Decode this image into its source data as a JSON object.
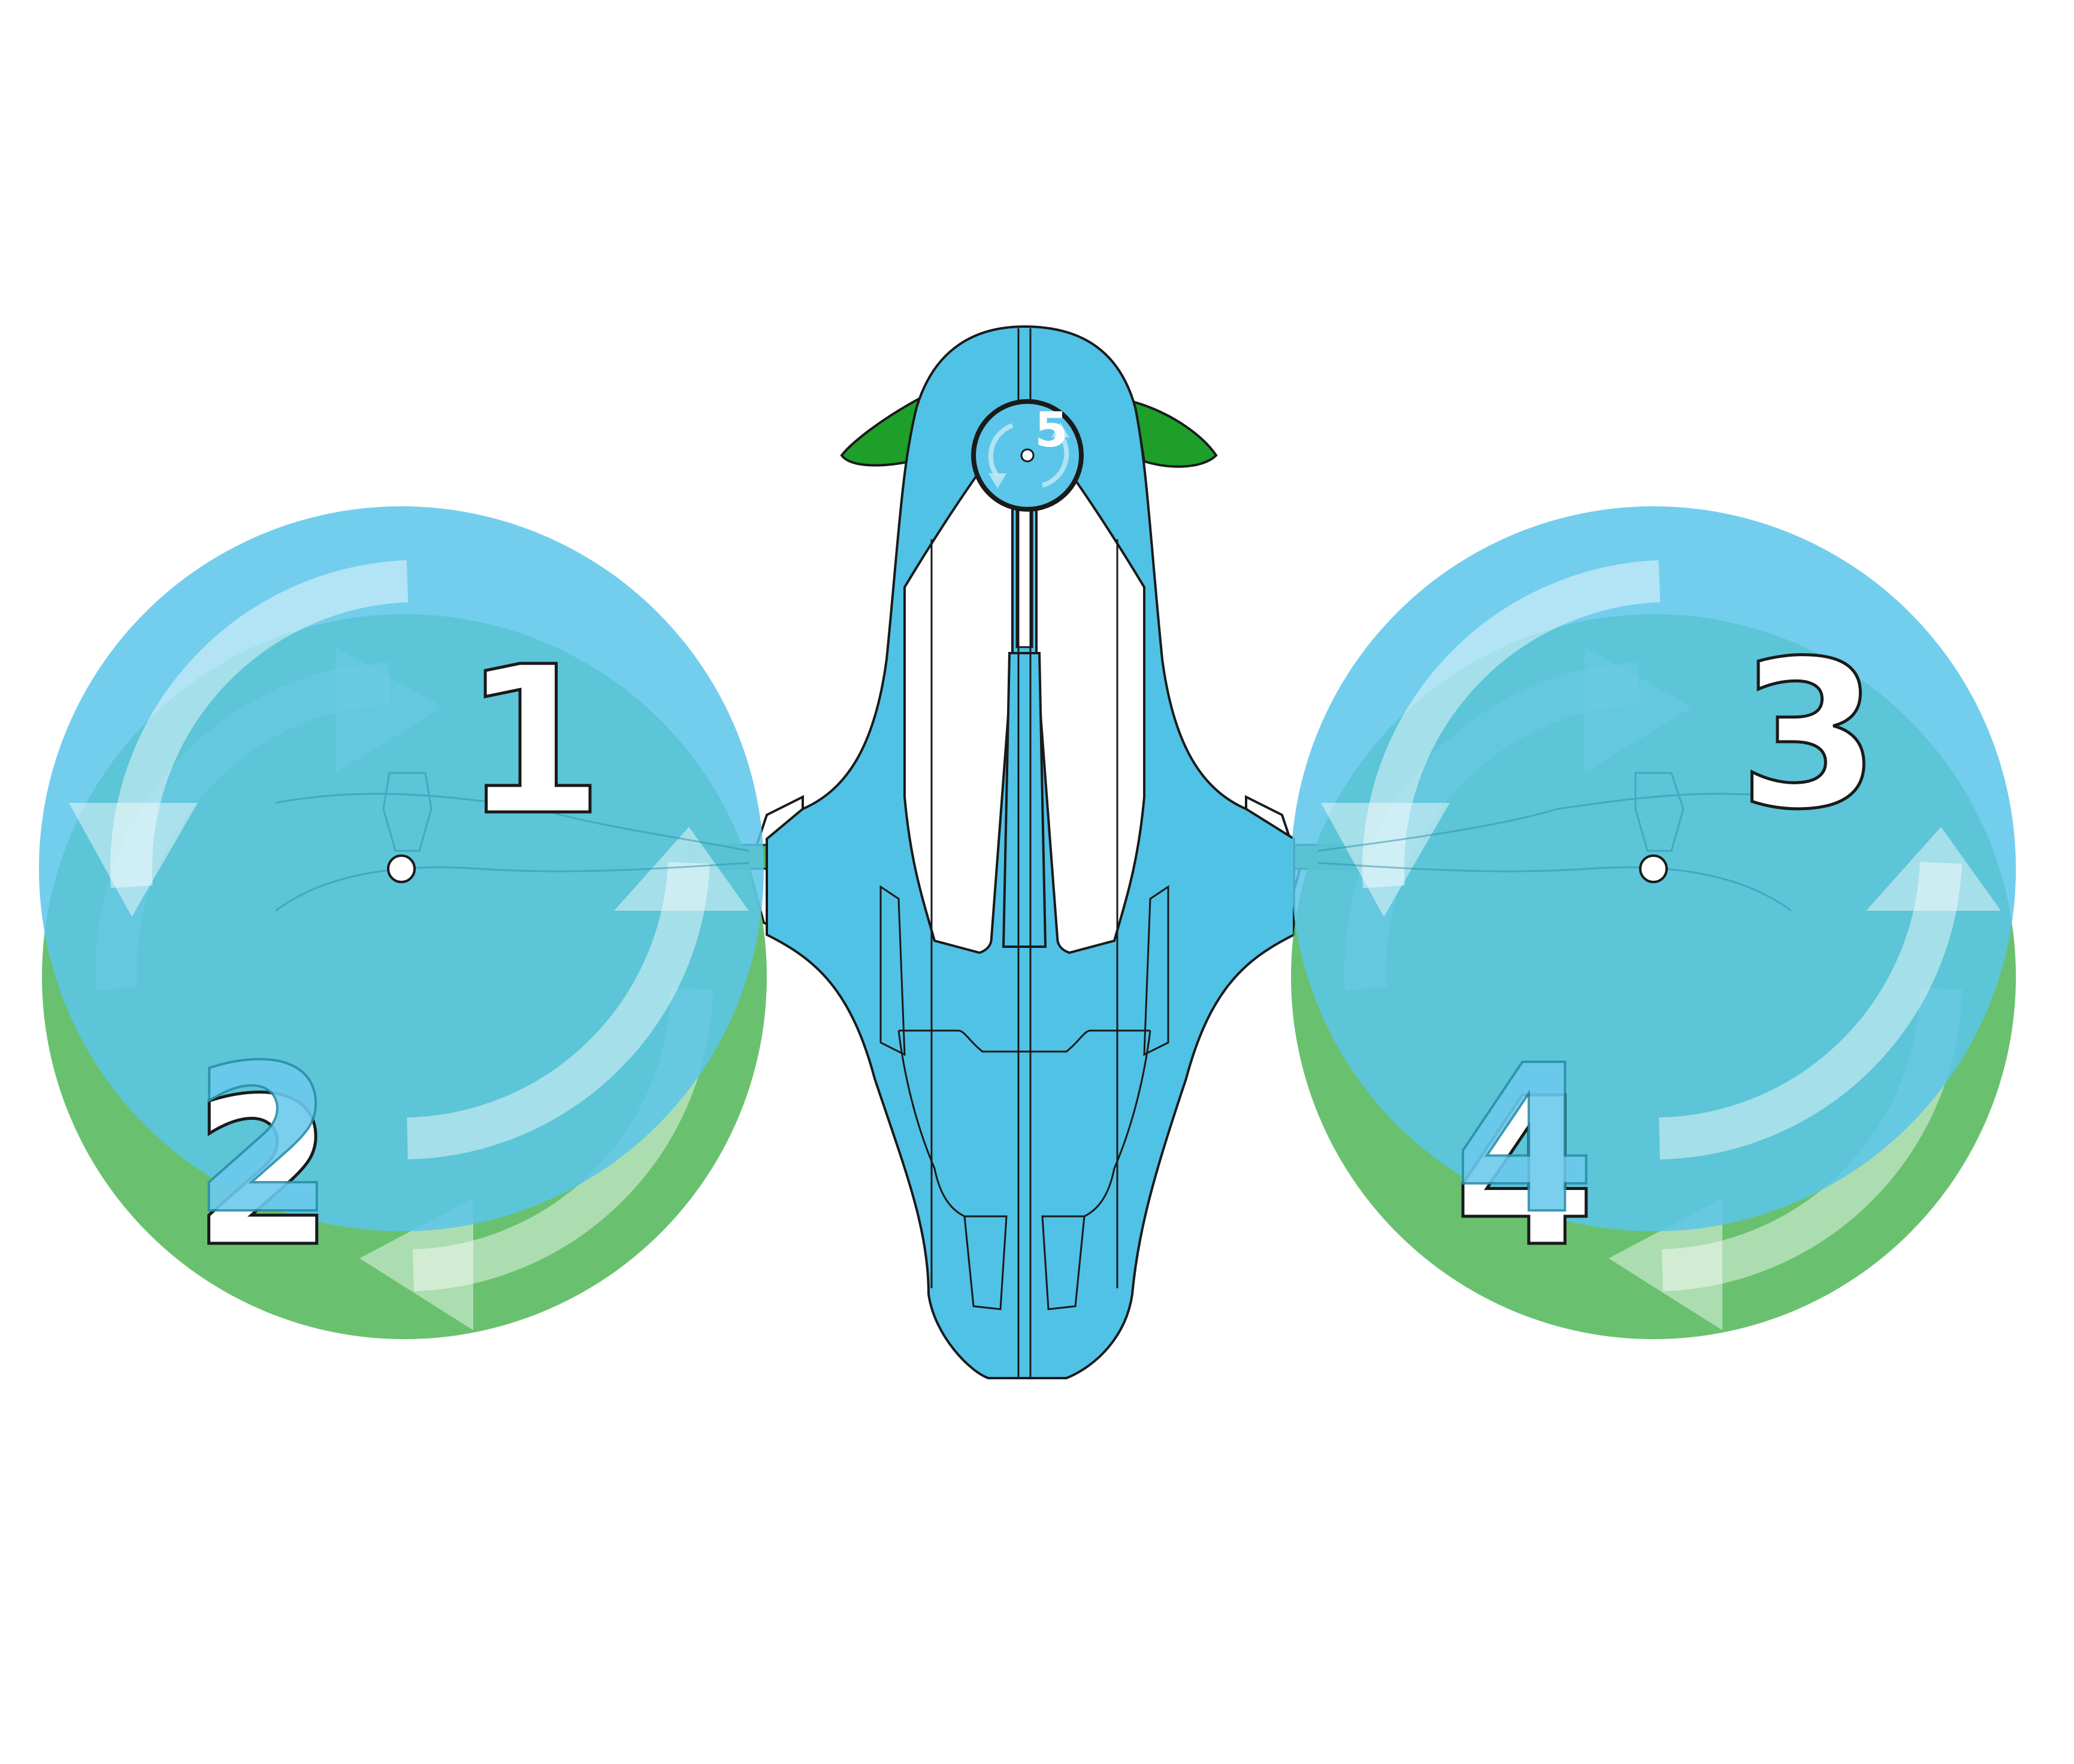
{
  "diagram": {
    "rotors": [
      {
        "id": 1,
        "label": "1",
        "layer": "upper",
        "direction": "counter-clockwise"
      },
      {
        "id": 2,
        "label": "2",
        "layer": "lower",
        "direction": "clockwise"
      },
      {
        "id": 3,
        "label": "3",
        "layer": "upper",
        "direction": "counter-clockwise"
      },
      {
        "id": 4,
        "label": "4",
        "layer": "lower",
        "direction": "clockwise"
      },
      {
        "id": 5,
        "label": "5",
        "layer": "tail",
        "direction": "clockwise"
      }
    ],
    "colors": {
      "upper_rotor": "#5bc6ea",
      "lower_rotor": "#4fb656",
      "body": "#50c2e6",
      "fin": "#1e9f2a",
      "arrow_light": "#ffffff",
      "label_white": "#ffffff",
      "label_blue": "#6ccaee",
      "outline": "#1a1a1a"
    }
  }
}
